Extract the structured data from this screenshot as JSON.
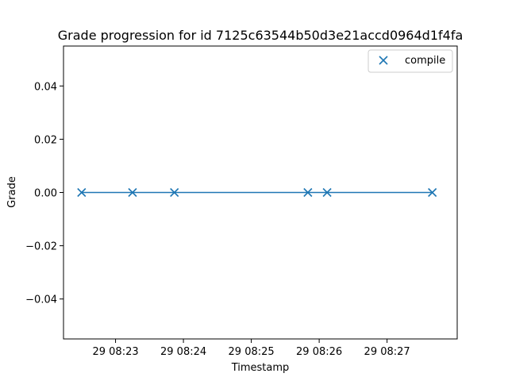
{
  "chart_data": {
    "type": "line",
    "title": "Grade progression for id 7125c63544b50d3e21accd0964d1f4fa",
    "xlabel": "Timestamp",
    "ylabel": "Grade",
    "x_ticks": [
      "29 08:23",
      "29 08:24",
      "29 08:25",
      "29 08:26",
      "29 08:27"
    ],
    "y_ticks": [
      "0.04",
      "0.02",
      "0.00",
      "−0.02",
      "−0.04"
    ],
    "y_tick_values": [
      0.04,
      0.02,
      0.0,
      -0.02,
      -0.04
    ],
    "xlim": [
      "08:22:14",
      "08:28:02"
    ],
    "ylim": [
      -0.055,
      0.055
    ],
    "legend_position": "top-right",
    "grid": false,
    "series": [
      {
        "name": "compile",
        "color": "#1f77b4",
        "marker": "x",
        "x": [
          "08:22:30",
          "08:23:15",
          "08:23:52",
          "08:25:50",
          "08:26:07",
          "08:27:40"
        ],
        "values": [
          0,
          0,
          0,
          0,
          0,
          0
        ]
      }
    ]
  }
}
